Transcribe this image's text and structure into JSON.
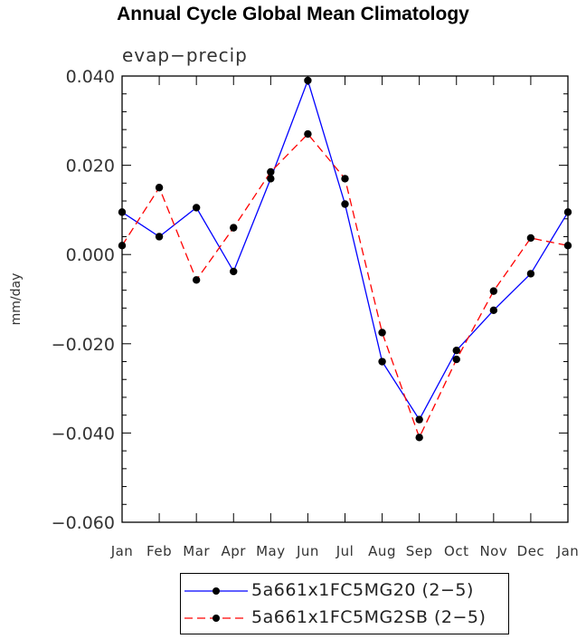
{
  "chart_data": {
    "type": "line",
    "title": "Annual Cycle Global Mean Climatology",
    "subtitle": "evap−precip",
    "ylabel": "mm/day",
    "xlabel": "",
    "categories": [
      "Jan",
      "Feb",
      "Mar",
      "Apr",
      "May",
      "Jun",
      "Jul",
      "Aug",
      "Sep",
      "Oct",
      "Nov",
      "Dec",
      "Jan"
    ],
    "ylim": [
      -0.06,
      0.04
    ],
    "yticks": [
      0.04,
      0.02,
      0.0,
      -0.02,
      -0.04,
      -0.06
    ],
    "ytick_labels": [
      "0.040",
      "0.020",
      "0.000",
      "−0.020",
      "−0.040",
      "−0.060"
    ],
    "series": [
      {
        "name": "5a661x1FC5MG20 (2−5)",
        "color": "#0000ff",
        "dash": "solid",
        "values": [
          0.0095,
          0.004,
          0.0105,
          -0.0038,
          0.017,
          0.039,
          0.0113,
          -0.024,
          -0.037,
          -0.0215,
          -0.0125,
          -0.0043,
          0.0095
        ]
      },
      {
        "name": "5a661x1FC5MG2SB (2−5)",
        "color": "#ff0000",
        "dash": "dashed",
        "values": [
          0.002,
          0.015,
          -0.0057,
          0.006,
          0.0185,
          0.027,
          0.017,
          -0.0175,
          -0.041,
          -0.0235,
          -0.0082,
          0.0037,
          0.002
        ]
      }
    ],
    "legend_position": "bottom-center"
  }
}
